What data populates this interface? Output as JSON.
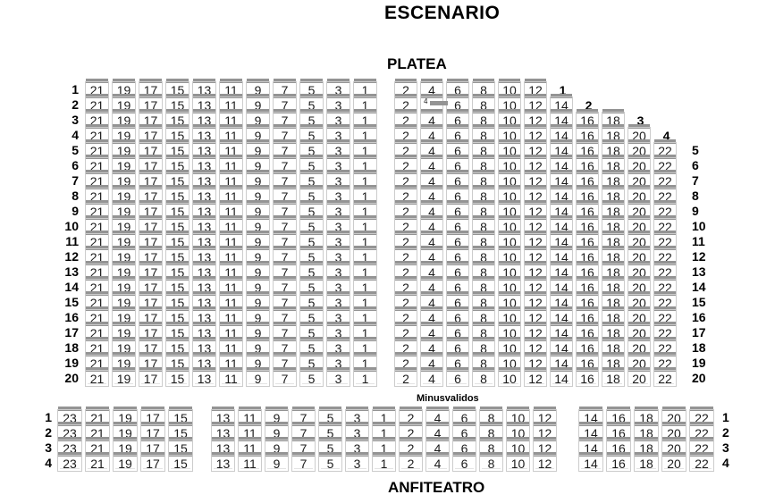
{
  "titles": {
    "escenario": "ESCENARIO",
    "platea": "PLATEA",
    "anfiteatro": "ANFITEATRO",
    "accessible": "Minusvalidos"
  },
  "colors": {
    "background": "#ffffff",
    "seat_back": "#949494",
    "seat_border": "#cccccc",
    "seat_number": "#1c1c1c",
    "row_label": "#000000"
  },
  "platea": {
    "left_row_labels": [
      "1",
      "2",
      "3",
      "4",
      "5",
      "6",
      "7",
      "8",
      "9",
      "10",
      "11",
      "12",
      "13",
      "14",
      "15",
      "16",
      "17",
      "18",
      "19",
      "20"
    ],
    "right_row_labels": [
      "5",
      "6",
      "7",
      "8",
      "9",
      "10",
      "11",
      "12",
      "13",
      "14",
      "15",
      "16",
      "17",
      "18",
      "19",
      "20"
    ],
    "left_block": {
      "row_count": 20,
      "seats": [
        "21",
        "19",
        "17",
        "15",
        "13",
        "11",
        "9",
        "7",
        "5",
        "3",
        "1"
      ]
    },
    "right_block": {
      "rows": [
        {
          "seats": [
            "2",
            "4",
            "6",
            "8",
            "10",
            "12"
          ],
          "inline_label": "1"
        },
        {
          "seats": [
            "2",
            "4",
            "6",
            "8",
            "10",
            "12",
            "14"
          ],
          "inline_label": "2",
          "obscured_seat": "4"
        },
        {
          "seats": [
            "2",
            "4",
            "6",
            "8",
            "10",
            "12",
            "14",
            "16",
            "18"
          ],
          "inline_label": "3"
        },
        {
          "seats": [
            "2",
            "4",
            "6",
            "8",
            "10",
            "12",
            "14",
            "16",
            "18",
            "20"
          ],
          "inline_label": "4"
        },
        {
          "seats": [
            "2",
            "4",
            "6",
            "8",
            "10",
            "12",
            "14",
            "16",
            "18",
            "20",
            "22"
          ]
        },
        {
          "seats": [
            "2",
            "4",
            "6",
            "8",
            "10",
            "12",
            "14",
            "16",
            "18",
            "20",
            "22"
          ]
        },
        {
          "seats": [
            "2",
            "4",
            "6",
            "8",
            "10",
            "12",
            "14",
            "16",
            "18",
            "20",
            "22"
          ]
        },
        {
          "seats": [
            "2",
            "4",
            "6",
            "8",
            "10",
            "12",
            "14",
            "16",
            "18",
            "20",
            "22"
          ]
        },
        {
          "seats": [
            "2",
            "4",
            "6",
            "8",
            "10",
            "12",
            "14",
            "16",
            "18",
            "20",
            "22"
          ]
        },
        {
          "seats": [
            "2",
            "4",
            "6",
            "8",
            "10",
            "12",
            "14",
            "16",
            "18",
            "20",
            "22"
          ]
        },
        {
          "seats": [
            "2",
            "4",
            "6",
            "8",
            "10",
            "12",
            "14",
            "16",
            "18",
            "20",
            "22"
          ]
        },
        {
          "seats": [
            "2",
            "4",
            "6",
            "8",
            "10",
            "12",
            "14",
            "16",
            "18",
            "20",
            "22"
          ]
        },
        {
          "seats": [
            "2",
            "4",
            "6",
            "8",
            "10",
            "12",
            "14",
            "16",
            "18",
            "20",
            "22"
          ]
        },
        {
          "seats": [
            "2",
            "4",
            "6",
            "8",
            "10",
            "12",
            "14",
            "16",
            "18",
            "20",
            "22"
          ]
        },
        {
          "seats": [
            "2",
            "4",
            "6",
            "8",
            "10",
            "12",
            "14",
            "16",
            "18",
            "20",
            "22"
          ]
        },
        {
          "seats": [
            "2",
            "4",
            "6",
            "8",
            "10",
            "12",
            "14",
            "16",
            "18",
            "20",
            "22"
          ]
        },
        {
          "seats": [
            "2",
            "4",
            "6",
            "8",
            "10",
            "12",
            "14",
            "16",
            "18",
            "20",
            "22"
          ]
        },
        {
          "seats": [
            "2",
            "4",
            "6",
            "8",
            "10",
            "12",
            "14",
            "16",
            "18",
            "20",
            "22"
          ]
        },
        {
          "seats": [
            "2",
            "4",
            "6",
            "8",
            "10",
            "12",
            "14",
            "16",
            "18",
            "20",
            "22"
          ]
        },
        {
          "seats": [
            "2",
            "4",
            "6",
            "8",
            "10",
            "12",
            "14",
            "16",
            "18",
            "20",
            "22"
          ]
        }
      ]
    }
  },
  "anfiteatro": {
    "row_count": 4,
    "row_labels_left": [
      "1",
      "2",
      "3",
      "4"
    ],
    "row_labels_right": [
      "1",
      "2",
      "3",
      "4"
    ],
    "left_block": {
      "seats": [
        "23",
        "21",
        "19",
        "17",
        "15"
      ]
    },
    "middle_block": {
      "seats": [
        "13",
        "11",
        "9",
        "7",
        "5",
        "3",
        "1",
        "2",
        "4",
        "6",
        "8",
        "10",
        "12"
      ]
    },
    "right_block": {
      "seats": [
        "14",
        "16",
        "18",
        "20",
        "22"
      ]
    }
  }
}
